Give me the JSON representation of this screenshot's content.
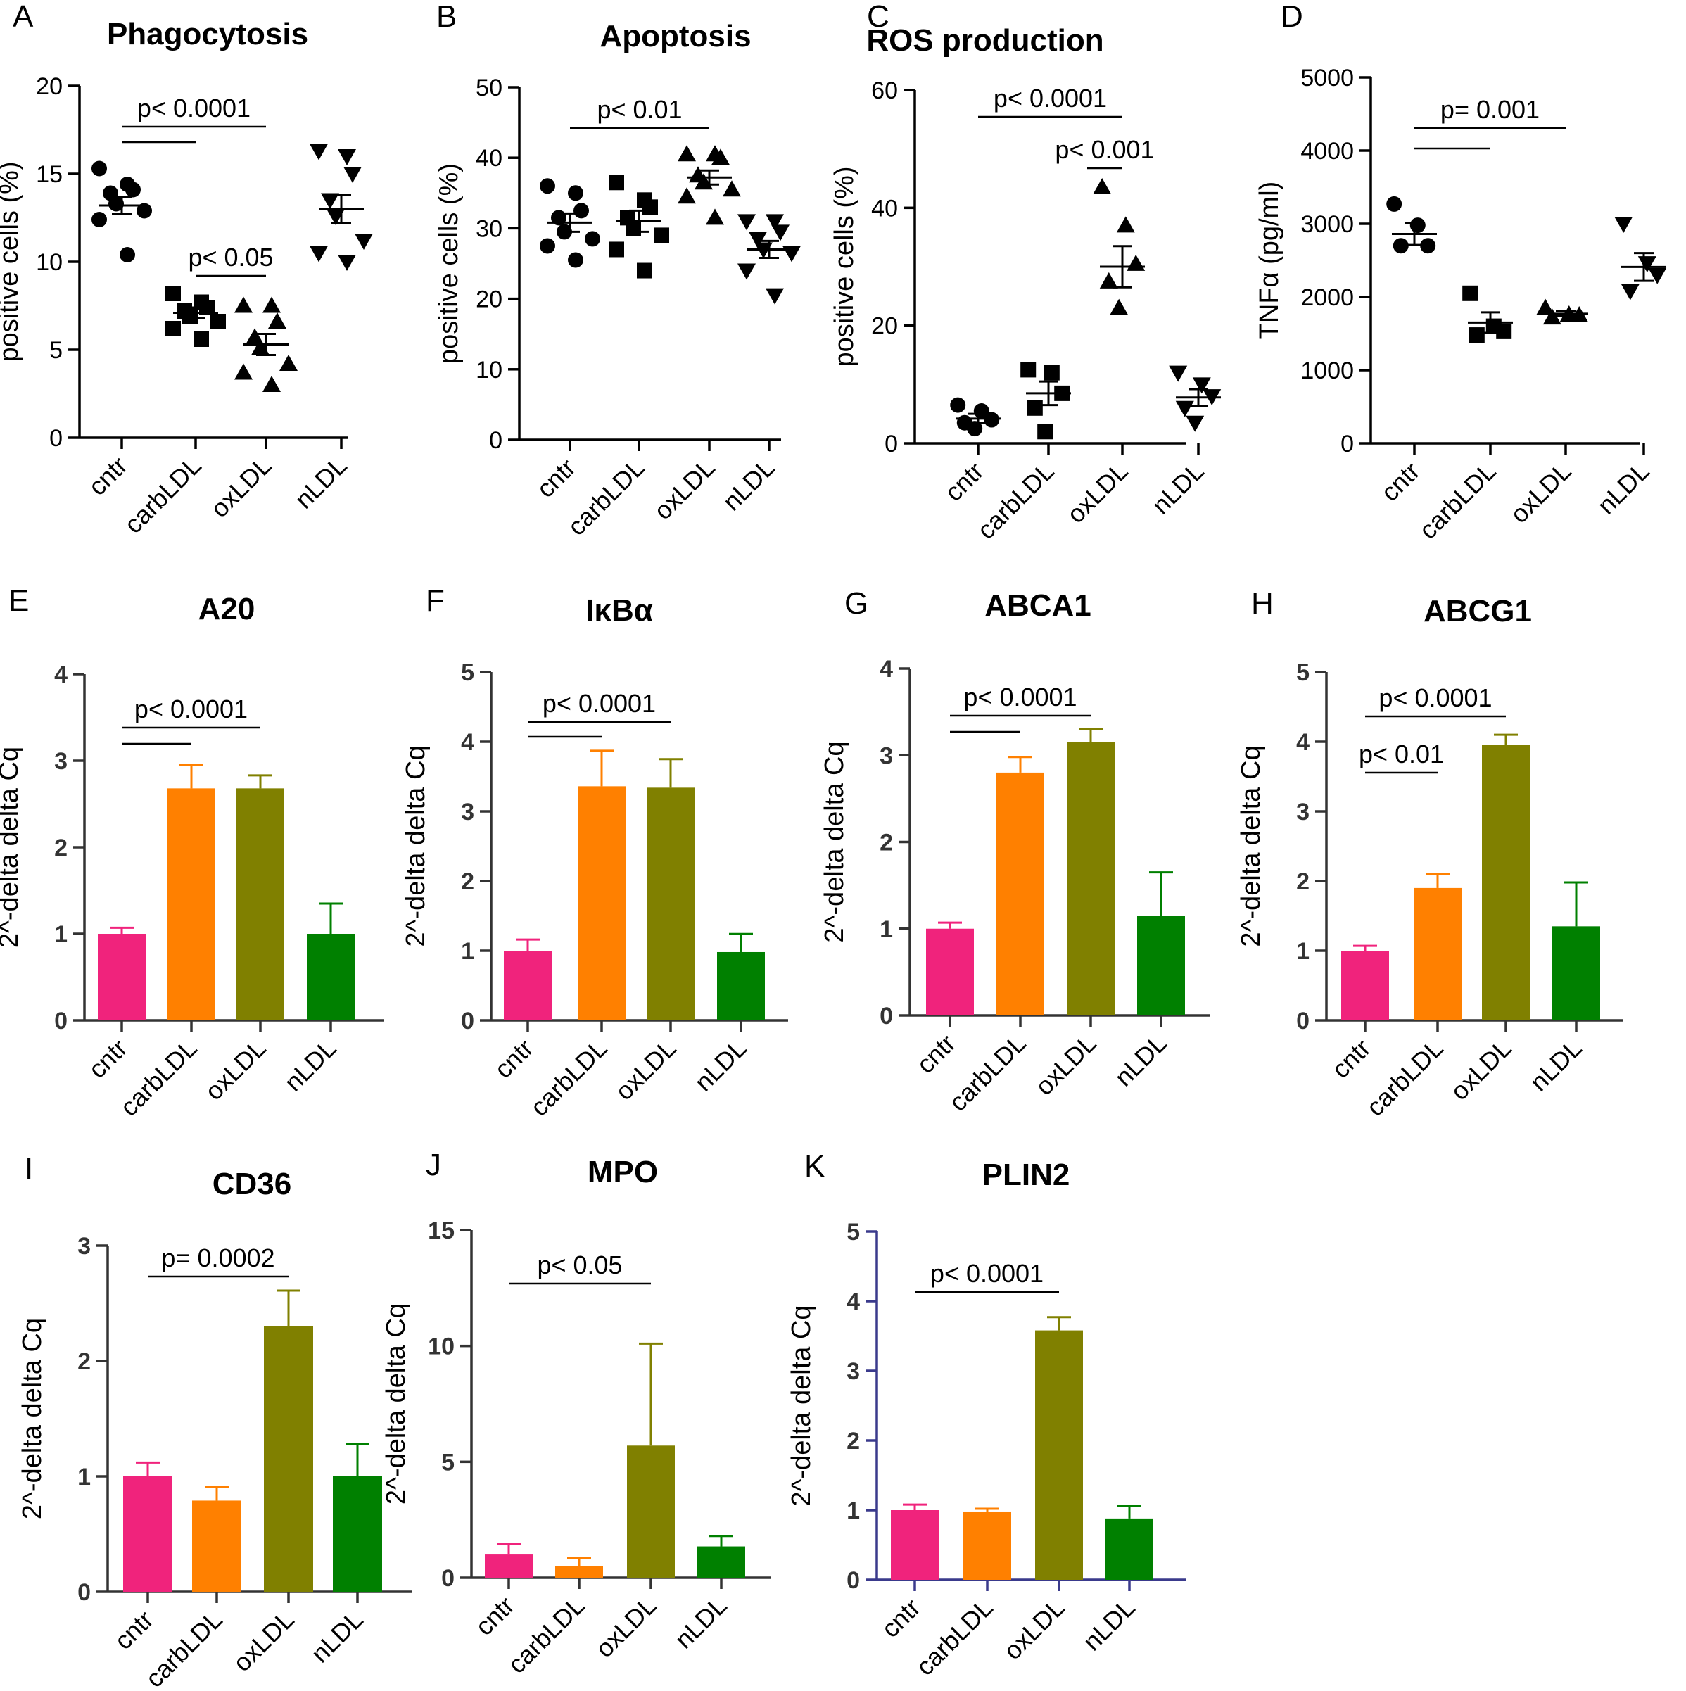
{
  "colors": {
    "axis": "#000000",
    "axis_dark": "#333333",
    "axis_blue": "#3a3a8c",
    "cntr": "#f0237c",
    "carbLDL": "#ff8000",
    "oxLDL": "#808000",
    "nLDL": "#008000"
  },
  "categories": [
    "cntr",
    "carbLDL",
    "oxLDL",
    "nLDL"
  ],
  "chart_data": [
    {
      "id": "A",
      "letter": "A",
      "type": "scatter",
      "title": "Phagocytosis",
      "ylabel": "positive cells (%)",
      "ylim": [
        0,
        20
      ],
      "yticks": [
        "0",
        "5",
        "10",
        "15",
        "20"
      ],
      "groups": [
        {
          "name": "cntr",
          "marker": "circle",
          "points": [
            15.3,
            14.4,
            14.1,
            13.9,
            13.3,
            12.9,
            12.4,
            10.4
          ],
          "mean": 13.2,
          "sem": 0.5
        },
        {
          "name": "carbLDL",
          "marker": "square",
          "points": [
            8.2,
            7.7,
            7.4,
            7.2,
            6.9,
            6.6,
            6.2,
            5.6
          ],
          "mean": 7.1,
          "sem": 0.3
        },
        {
          "name": "oxLDL",
          "marker": "triangle",
          "points": [
            7.5,
            7.5,
            6.6,
            5.7,
            5.1,
            4.2,
            3.7,
            3.0
          ],
          "mean": 5.3,
          "sem": 0.6
        },
        {
          "name": "nLDL",
          "marker": "triangle-down",
          "points": [
            16.3,
            16.0,
            15.0,
            13.5,
            12.6,
            11.2,
            10.5,
            10.0
          ],
          "mean": 13.0,
          "sem": 0.8
        }
      ],
      "annotations": [
        {
          "text": "p< 0.0001",
          "from": 0,
          "to": 2,
          "line2_to": 1
        },
        {
          "text": "p< 0.05",
          "from": 1,
          "to": 2
        }
      ]
    },
    {
      "id": "B",
      "letter": "B",
      "type": "scatter",
      "title": "Apoptosis",
      "ylabel": "positive cells (%)",
      "ylim": [
        0,
        50
      ],
      "yticks": [
        "0",
        "10",
        "20",
        "30",
        "40",
        "50"
      ],
      "groups": [
        {
          "name": "cntr",
          "marker": "circle",
          "points": [
            36.0,
            35.0,
            32.5,
            31.5,
            29.5,
            28.5,
            27.5,
            25.5
          ],
          "mean": 30.8,
          "sem": 1.3
        },
        {
          "name": "carbLDL",
          "marker": "square",
          "points": [
            36.5,
            34.0,
            33.0,
            31.5,
            30.0,
            29.0,
            27.0,
            24.0
          ],
          "mean": 31.0,
          "sem": 1.5
        },
        {
          "name": "oxLDL",
          "marker": "triangle",
          "points": [
            40.5,
            40.5,
            40.0,
            37.5,
            36.5,
            35.5,
            34.5,
            31.5
          ],
          "mean": 37.2,
          "sem": 1.0
        },
        {
          "name": "nLDL",
          "marker": "triangle-down",
          "points": [
            31.0,
            31.0,
            29.5,
            28.5,
            27.0,
            26.5,
            24.0,
            20.5
          ],
          "mean": 27.0,
          "sem": 1.2
        }
      ],
      "annotations": [
        {
          "text": "p< 0.01",
          "from": 0,
          "to": 2
        }
      ]
    },
    {
      "id": "C",
      "letter": "C",
      "type": "scatter",
      "title": "ROS production",
      "ylabel": "positive cells (%)",
      "ylim": [
        0,
        60
      ],
      "yticks": [
        "0",
        "20",
        "40",
        "60"
      ],
      "groups": [
        {
          "name": "cntr",
          "marker": "circle",
          "points": [
            6.5,
            5.5,
            4.0,
            3.5,
            2.5
          ],
          "mean": 4.2,
          "sem": 0.8
        },
        {
          "name": "carbLDL",
          "marker": "square",
          "points": [
            12.5,
            12.0,
            8.5,
            6.0,
            2.0
          ],
          "mean": 8.5,
          "sem": 2.0
        },
        {
          "name": "oxLDL",
          "marker": "triangle",
          "points": [
            43.5,
            37.0,
            30.5,
            27.5,
            23.0
          ],
          "mean": 30.0,
          "sem": 3.5
        },
        {
          "name": "nLDL",
          "marker": "triangle-down",
          "points": [
            12.0,
            10.0,
            8.0,
            6.0,
            3.5
          ],
          "mean": 7.8,
          "sem": 1.4
        }
      ],
      "annotations": [
        {
          "text": "p< 0.0001",
          "from": 0,
          "to": 2
        },
        {
          "text": "p< 0.001",
          "from": 1.55,
          "to": 2
        }
      ]
    },
    {
      "id": "D",
      "letter": "D",
      "type": "scatter",
      "title": "",
      "ylabel": "TNFα (pg/ml)",
      "ylim": [
        0,
        5000
      ],
      "yticks": [
        "0",
        "1000",
        "2000",
        "3000",
        "4000",
        "5000"
      ],
      "groups": [
        {
          "name": "cntr",
          "marker": "circle",
          "points": [
            3270,
            2980,
            2700,
            2700
          ],
          "mean": 2860,
          "sem": 150
        },
        {
          "name": "carbLDL",
          "marker": "square",
          "points": [
            2050,
            1600,
            1530,
            1480
          ],
          "mean": 1650,
          "sem": 140
        },
        {
          "name": "oxLDL",
          "marker": "triangle",
          "points": [
            1850,
            1760,
            1750,
            1720
          ],
          "mean": 1770,
          "sem": 35
        },
        {
          "name": "nLDL",
          "marker": "triangle-down",
          "points": [
            3000,
            2460,
            2300,
            2080
          ],
          "mean": 2410,
          "sem": 190
        }
      ],
      "annotations": [
        {
          "text": "p= 0.001",
          "from": 0,
          "to": 2,
          "line2_to": 1
        }
      ]
    },
    {
      "id": "E",
      "letter": "E",
      "type": "bar",
      "title": "A20",
      "ylabel": "2^-delta delta Cq",
      "ylim": [
        0,
        4
      ],
      "yticks": [
        "0",
        "1",
        "2",
        "3",
        "4"
      ],
      "values": [
        1.0,
        2.68,
        2.68,
        1.0
      ],
      "errors": [
        0.07,
        0.27,
        0.15,
        0.35
      ],
      "annotations": [
        {
          "text": "p< 0.0001",
          "from": 0,
          "to": 2,
          "line2_to": 1
        }
      ]
    },
    {
      "id": "F",
      "letter": "F",
      "type": "bar",
      "title": "IκBα",
      "ylabel": "2^-delta delta Cq",
      "ylim": [
        0,
        5
      ],
      "yticks": [
        "0",
        "1",
        "2",
        "3",
        "4",
        "5"
      ],
      "values": [
        1.0,
        3.36,
        3.34,
        0.98
      ],
      "errors": [
        0.16,
        0.51,
        0.41,
        0.26
      ],
      "annotations": [
        {
          "text": "p< 0.0001",
          "from": 0,
          "to": 2,
          "line2_to": 1
        }
      ]
    },
    {
      "id": "G",
      "letter": "G",
      "type": "bar",
      "title": "ABCA1",
      "ylabel": "2^-delta delta Cq",
      "ylim": [
        0,
        4
      ],
      "yticks": [
        "0",
        "1",
        "2",
        "3",
        "4"
      ],
      "values": [
        1.0,
        2.8,
        3.15,
        1.15
      ],
      "errors": [
        0.07,
        0.18,
        0.15,
        0.5
      ],
      "annotations": [
        {
          "text": "p< 0.0001",
          "from": 0,
          "to": 2,
          "line2_to": 1
        }
      ]
    },
    {
      "id": "H",
      "letter": "H",
      "type": "bar",
      "title": "ABCG1",
      "ylabel": "2^-delta delta Cq",
      "ylim": [
        0,
        5
      ],
      "yticks": [
        "0",
        "1",
        "2",
        "3",
        "4",
        "5"
      ],
      "values": [
        1.0,
        1.9,
        3.95,
        1.35
      ],
      "errors": [
        0.07,
        0.2,
        0.15,
        0.63
      ],
      "annotations": [
        {
          "text": "p< 0.0001",
          "from": 0,
          "to": 2
        },
        {
          "text": "p< 0.01",
          "from": 0,
          "to": 1
        }
      ]
    },
    {
      "id": "I",
      "letter": "I",
      "type": "bar",
      "title": "CD36",
      "ylabel": "2^-delta delta Cq",
      "ylim": [
        0,
        3
      ],
      "yticks": [
        "0",
        "1",
        "2",
        "3"
      ],
      "values": [
        1.0,
        0.79,
        2.3,
        1.0
      ],
      "errors": [
        0.12,
        0.12,
        0.31,
        0.28
      ],
      "annotations": [
        {
          "text": "p= 0.0002",
          "from": 0,
          "to": 2
        }
      ]
    },
    {
      "id": "J",
      "letter": "J",
      "type": "bar",
      "title": "MPO",
      "ylabel": "2^-delta delta Cq",
      "ylim": [
        0,
        15
      ],
      "yticks": [
        "0",
        "5",
        "10",
        "15"
      ],
      "values": [
        1.0,
        0.5,
        5.7,
        1.35
      ],
      "errors": [
        0.45,
        0.35,
        4.4,
        0.45
      ],
      "annotations": [
        {
          "text": "p< 0.05",
          "from": 0,
          "to": 2
        }
      ]
    },
    {
      "id": "K",
      "letter": "K",
      "type": "bar",
      "title": "PLIN2",
      "ylabel": "2^-delta delta Cq",
      "ylim": [
        0,
        5
      ],
      "yticks": [
        "0",
        "1",
        "2",
        "3",
        "4",
        "5"
      ],
      "values": [
        1.0,
        0.98,
        3.58,
        0.88
      ],
      "errors": [
        0.08,
        0.04,
        0.19,
        0.18
      ],
      "annotations": [
        {
          "text": "p< 0.0001",
          "from": 0,
          "to": 2
        }
      ]
    }
  ]
}
